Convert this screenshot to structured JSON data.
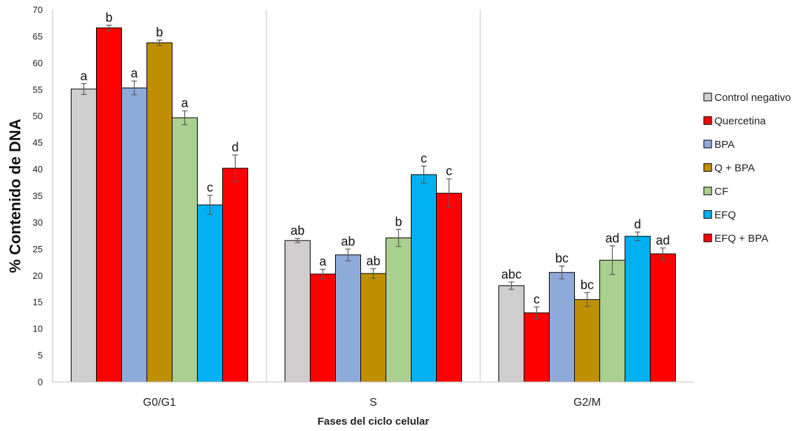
{
  "chart_data": {
    "type": "bar",
    "title": "",
    "xlabel": "Fases del ciclo celular",
    "ylabel": "% Contenido de DNA",
    "ylim": [
      0,
      70
    ],
    "yticks": [
      0,
      5,
      10,
      15,
      20,
      25,
      30,
      35,
      40,
      45,
      50,
      55,
      60,
      65,
      70
    ],
    "grid": false,
    "category_separators": true,
    "legend_position": "right",
    "categories": [
      "G0/G1",
      "S",
      "G2/M"
    ],
    "series": [
      {
        "name": "Control negativo",
        "color": "#d0cece",
        "values": [
          55.1,
          26.6,
          18.1
        ],
        "errors": [
          1.0,
          0.4,
          0.7
        ],
        "labels": [
          "a",
          "ab",
          "abc"
        ]
      },
      {
        "name": "Quercetina",
        "color": "#ff0000",
        "values": [
          66.6,
          20.3,
          13.0
        ],
        "errors": [
          0.5,
          0.9,
          1.1
        ],
        "labels": [
          "b",
          "a",
          "c"
        ]
      },
      {
        "name": "BPA",
        "color": "#8eaadb",
        "values": [
          55.3,
          23.9,
          20.6
        ],
        "errors": [
          1.3,
          1.1,
          1.2
        ],
        "labels": [
          "a",
          "ab",
          "bc"
        ]
      },
      {
        "name": "Q + BPA",
        "color": "#bf8f00",
        "values": [
          63.8,
          20.4,
          15.5
        ],
        "errors": [
          0.5,
          0.9,
          1.3
        ],
        "labels": [
          "b",
          "ab",
          "bc"
        ]
      },
      {
        "name": "CF",
        "color": "#a9d08e",
        "values": [
          49.7,
          27.1,
          22.9
        ],
        "errors": [
          1.3,
          1.6,
          2.7
        ],
        "labels": [
          "a",
          "b",
          "ad"
        ]
      },
      {
        "name": "EFQ",
        "color": "#00b0f0",
        "values": [
          33.3,
          39.0,
          27.4
        ],
        "errors": [
          1.8,
          1.6,
          0.8
        ],
        "labels": [
          "c",
          "c",
          "d"
        ]
      },
      {
        "name": "EFQ + BPA",
        "color": "#ff0000",
        "values": [
          40.2,
          35.5,
          24.1
        ],
        "errors": [
          2.5,
          2.7,
          1.1
        ],
        "labels": [
          "d",
          "c",
          "ad"
        ]
      }
    ]
  }
}
